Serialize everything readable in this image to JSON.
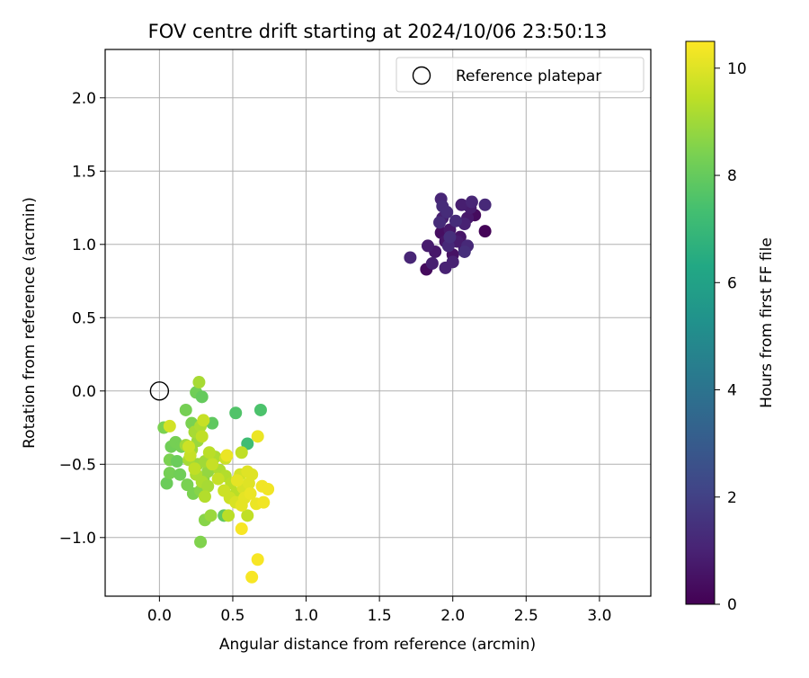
{
  "chart_data": {
    "type": "scatter",
    "title": "FOV centre drift starting at 2024/10/06 23:50:13",
    "xlabel": "Angular distance from reference (arcmin)",
    "ylabel": "Rotation from reference (arcmin)",
    "xlim": [
      -0.37,
      3.35
    ],
    "ylim": [
      -1.4,
      2.33
    ],
    "xticks": [
      0.0,
      0.5,
      1.0,
      1.5,
      2.0,
      2.5,
      3.0
    ],
    "xtick_labels": [
      "0.0",
      "0.5",
      "1.0",
      "1.5",
      "2.0",
      "2.5",
      "3.0"
    ],
    "yticks": [
      -1.0,
      -0.5,
      0.0,
      0.5,
      1.0,
      1.5,
      2.0
    ],
    "ytick_labels": [
      "−1.0",
      "−0.5",
      "0.0",
      "0.5",
      "1.0",
      "1.5",
      "2.0"
    ],
    "grid": true,
    "legend_position": "top-right",
    "reference": {
      "label": "Reference platepar",
      "x": 0.0,
      "y": 0.0
    },
    "colorbar": {
      "label": "Hours from first FF file",
      "range": [
        0,
        10.5
      ],
      "ticks": [
        0,
        2,
        4,
        6,
        8,
        10
      ],
      "tick_labels": [
        "0",
        "2",
        "4",
        "6",
        "8",
        "10"
      ],
      "colormap": "viridis"
    },
    "points": [
      {
        "x": 2.22,
        "y": 1.09,
        "h": 0.1
      },
      {
        "x": 1.82,
        "y": 0.83,
        "h": 0.3
      },
      {
        "x": 2.15,
        "y": 1.2,
        "h": 0.3
      },
      {
        "x": 1.92,
        "y": 1.08,
        "h": 0.4
      },
      {
        "x": 2.0,
        "y": 0.93,
        "h": 0.5
      },
      {
        "x": 2.08,
        "y": 0.97,
        "h": 0.5
      },
      {
        "x": 1.95,
        "y": 1.02,
        "h": 0.6
      },
      {
        "x": 2.05,
        "y": 1.05,
        "h": 0.6
      },
      {
        "x": 1.88,
        "y": 0.95,
        "h": 0.7
      },
      {
        "x": 1.98,
        "y": 1.1,
        "h": 0.7
      },
      {
        "x": 2.1,
        "y": 1.18,
        "h": 0.7
      },
      {
        "x": 1.83,
        "y": 0.99,
        "h": 0.8
      },
      {
        "x": 2.12,
        "y": 1.25,
        "h": 0.8
      },
      {
        "x": 2.03,
        "y": 1.02,
        "h": 0.8
      },
      {
        "x": 1.93,
        "y": 1.18,
        "h": 0.9
      },
      {
        "x": 2.06,
        "y": 1.27,
        "h": 0.9
      },
      {
        "x": 1.86,
        "y": 0.87,
        "h": 0.9
      },
      {
        "x": 2.0,
        "y": 0.88,
        "h": 1.0
      },
      {
        "x": 2.08,
        "y": 1.14,
        "h": 1.0
      },
      {
        "x": 1.95,
        "y": 0.84,
        "h": 1.0
      },
      {
        "x": 1.92,
        "y": 1.31,
        "h": 1.1
      },
      {
        "x": 2.13,
        "y": 1.29,
        "h": 1.1
      },
      {
        "x": 1.71,
        "y": 0.91,
        "h": 1.1
      },
      {
        "x": 2.22,
        "y": 1.27,
        "h": 1.2
      },
      {
        "x": 1.97,
        "y": 0.99,
        "h": 1.2
      },
      {
        "x": 2.1,
        "y": 0.99,
        "h": 1.2
      },
      {
        "x": 1.91,
        "y": 1.15,
        "h": 1.3
      },
      {
        "x": 1.93,
        "y": 1.26,
        "h": 1.3
      },
      {
        "x": 2.02,
        "y": 1.16,
        "h": 1.3
      },
      {
        "x": 1.96,
        "y": 1.22,
        "h": 1.3
      },
      {
        "x": 2.08,
        "y": 0.95,
        "h": 1.4
      },
      {
        "x": 1.98,
        "y": 1.05,
        "h": 1.4
      },
      {
        "x": 0.69,
        "y": -0.13,
        "h": 7.5
      },
      {
        "x": 0.52,
        "y": -0.15,
        "h": 7.6
      },
      {
        "x": 0.6,
        "y": -0.36,
        "h": 7.2
      },
      {
        "x": 0.44,
        "y": -0.85,
        "h": 7.9
      },
      {
        "x": 0.36,
        "y": -0.22,
        "h": 7.9
      },
      {
        "x": 0.25,
        "y": -0.01,
        "h": 8.2
      },
      {
        "x": 0.29,
        "y": -0.04,
        "h": 8.0
      },
      {
        "x": 0.18,
        "y": -0.13,
        "h": 8.3
      },
      {
        "x": 0.22,
        "y": -0.22,
        "h": 8.4
      },
      {
        "x": 0.03,
        "y": -0.25,
        "h": 8.4
      },
      {
        "x": 0.08,
        "y": -0.38,
        "h": 8.2
      },
      {
        "x": 0.11,
        "y": -0.35,
        "h": 8.3
      },
      {
        "x": 0.15,
        "y": -0.38,
        "h": 8.3
      },
      {
        "x": 0.07,
        "y": -0.47,
        "h": 8.4
      },
      {
        "x": 0.12,
        "y": -0.48,
        "h": 8.1
      },
      {
        "x": 0.05,
        "y": -0.63,
        "h": 8.1
      },
      {
        "x": 0.07,
        "y": -0.56,
        "h": 8.3
      },
      {
        "x": 0.14,
        "y": -0.57,
        "h": 8.2
      },
      {
        "x": 0.19,
        "y": -0.64,
        "h": 8.4
      },
      {
        "x": 0.23,
        "y": -0.7,
        "h": 8.4
      },
      {
        "x": 0.28,
        "y": -0.68,
        "h": 8.6
      },
      {
        "x": 0.28,
        "y": -1.03,
        "h": 8.5
      },
      {
        "x": 0.31,
        "y": -0.88,
        "h": 8.6
      },
      {
        "x": 0.35,
        "y": -0.85,
        "h": 8.9
      },
      {
        "x": 0.3,
        "y": -0.6,
        "h": 8.7
      },
      {
        "x": 0.33,
        "y": -0.55,
        "h": 8.8
      },
      {
        "x": 0.26,
        "y": -0.5,
        "h": 8.9
      },
      {
        "x": 0.31,
        "y": -0.48,
        "h": 9.0
      },
      {
        "x": 0.22,
        "y": -0.4,
        "h": 9.0
      },
      {
        "x": 0.26,
        "y": -0.34,
        "h": 8.9
      },
      {
        "x": 0.24,
        "y": -0.28,
        "h": 9.1
      },
      {
        "x": 0.28,
        "y": -0.24,
        "h": 9.2
      },
      {
        "x": 0.27,
        "y": 0.06,
        "h": 9.1
      },
      {
        "x": 0.18,
        "y": -0.37,
        "h": 9.0
      },
      {
        "x": 0.2,
        "y": -0.47,
        "h": 9.1
      },
      {
        "x": 0.25,
        "y": -0.57,
        "h": 9.2
      },
      {
        "x": 0.29,
        "y": -0.62,
        "h": 9.2
      },
      {
        "x": 0.33,
        "y": -0.65,
        "h": 9.1
      },
      {
        "x": 0.31,
        "y": -0.72,
        "h": 9.3
      },
      {
        "x": 0.38,
        "y": -0.45,
        "h": 9.2
      },
      {
        "x": 0.41,
        "y": -0.54,
        "h": 9.2
      },
      {
        "x": 0.45,
        "y": -0.58,
        "h": 9.3
      },
      {
        "x": 0.49,
        "y": -0.63,
        "h": 9.4
      },
      {
        "x": 0.47,
        "y": -0.85,
        "h": 9.4
      },
      {
        "x": 0.52,
        "y": -0.7,
        "h": 9.4
      },
      {
        "x": 0.6,
        "y": -0.85,
        "h": 9.5
      },
      {
        "x": 0.56,
        "y": -0.42,
        "h": 9.5
      },
      {
        "x": 0.3,
        "y": -0.2,
        "h": 9.6
      },
      {
        "x": 0.21,
        "y": -0.44,
        "h": 9.6
      },
      {
        "x": 0.24,
        "y": -0.53,
        "h": 9.5
      },
      {
        "x": 0.36,
        "y": -0.5,
        "h": 9.6
      },
      {
        "x": 0.4,
        "y": -0.6,
        "h": 9.6
      },
      {
        "x": 0.44,
        "y": -0.68,
        "h": 9.7
      },
      {
        "x": 0.48,
        "y": -0.73,
        "h": 9.7
      },
      {
        "x": 0.45,
        "y": -0.46,
        "h": 9.7
      },
      {
        "x": 0.55,
        "y": -0.57,
        "h": 9.8
      },
      {
        "x": 0.52,
        "y": -0.76,
        "h": 9.9
      },
      {
        "x": 0.57,
        "y": -0.66,
        "h": 9.9
      },
      {
        "x": 0.61,
        "y": -0.63,
        "h": 10.0
      },
      {
        "x": 0.63,
        "y": -0.57,
        "h": 10.0
      },
      {
        "x": 0.58,
        "y": -0.73,
        "h": 10.1
      },
      {
        "x": 0.53,
        "y": -0.61,
        "h": 10.1
      },
      {
        "x": 0.56,
        "y": -0.78,
        "h": 10.1
      },
      {
        "x": 0.62,
        "y": -0.7,
        "h": 10.2
      },
      {
        "x": 0.66,
        "y": -0.77,
        "h": 10.2
      },
      {
        "x": 0.7,
        "y": -0.65,
        "h": 10.3
      },
      {
        "x": 0.74,
        "y": -0.67,
        "h": 10.3
      },
      {
        "x": 0.71,
        "y": -0.76,
        "h": 10.3
      },
      {
        "x": 0.56,
        "y": -0.94,
        "h": 10.4
      },
      {
        "x": 0.67,
        "y": -1.15,
        "h": 10.4
      },
      {
        "x": 0.63,
        "y": -1.27,
        "h": 10.4
      },
      {
        "x": 0.67,
        "y": -0.31,
        "h": 10.2
      },
      {
        "x": 0.46,
        "y": -0.44,
        "h": 10.2
      },
      {
        "x": 0.6,
        "y": -0.55,
        "h": 10.0
      },
      {
        "x": 0.07,
        "y": -0.24,
        "h": 9.8
      },
      {
        "x": 0.2,
        "y": -0.38,
        "h": 9.7
      },
      {
        "x": 0.29,
        "y": -0.31,
        "h": 9.5
      },
      {
        "x": 0.34,
        "y": -0.42,
        "h": 9.4
      }
    ]
  }
}
